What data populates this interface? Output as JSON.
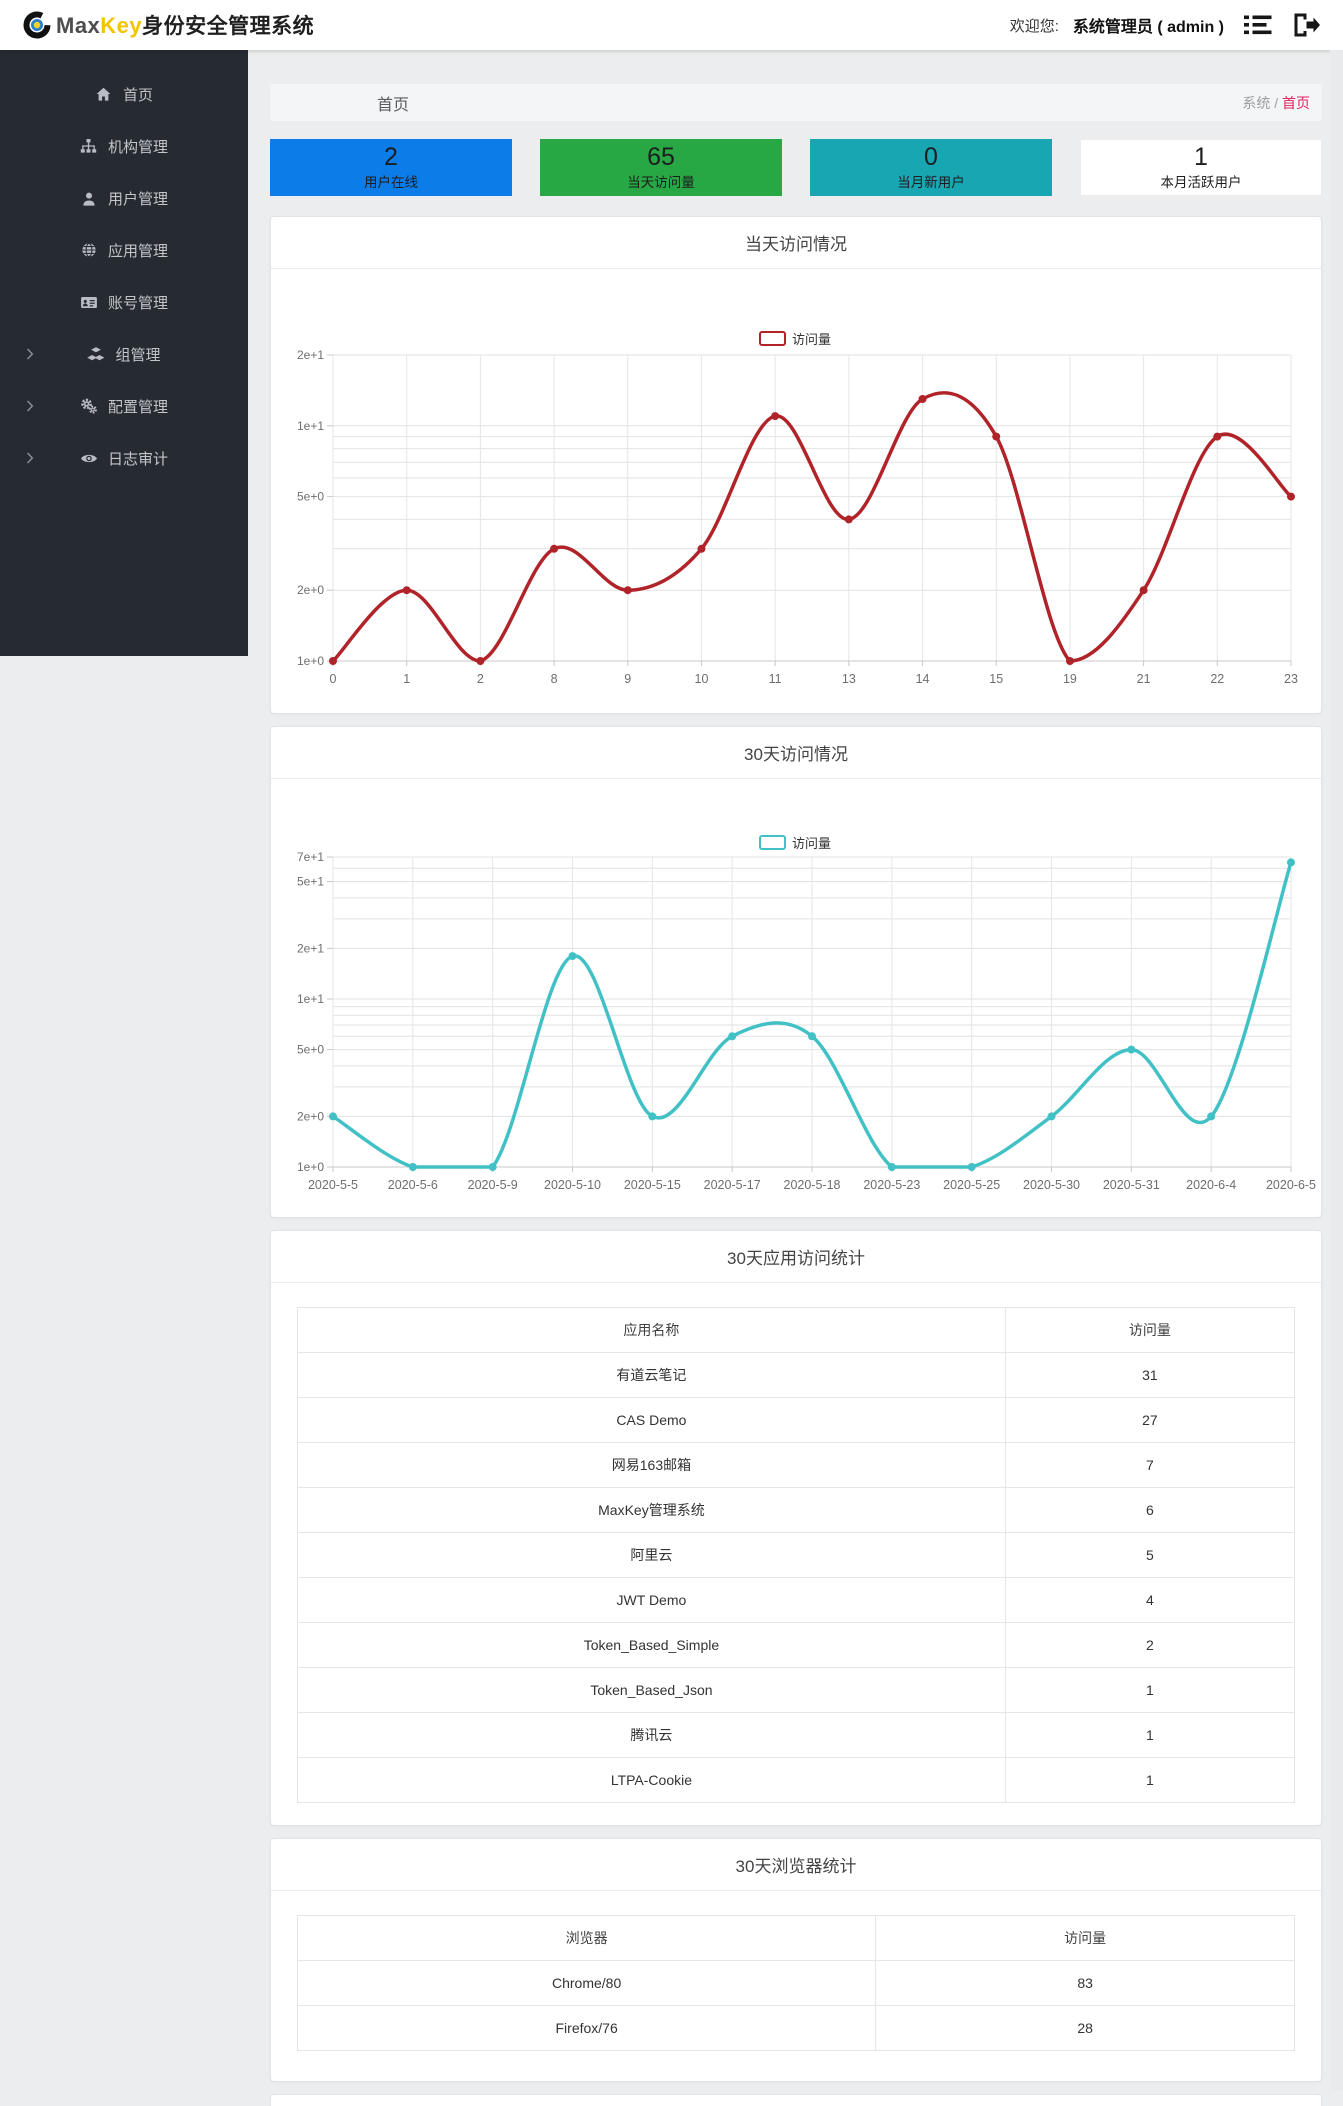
{
  "header": {
    "logo_max": "Max",
    "logo_key": "Key",
    "logo_suffix": "身份安全管理系统",
    "welcome_label": "欢迎您:",
    "username": "系统管理员 ( admin )"
  },
  "sidebar": {
    "items": [
      {
        "label": "首页",
        "icon": "home-icon",
        "expandable": false
      },
      {
        "label": "机构管理",
        "icon": "sitemap-icon",
        "expandable": false
      },
      {
        "label": "用户管理",
        "icon": "user-icon",
        "expandable": false
      },
      {
        "label": "应用管理",
        "icon": "globe-icon",
        "expandable": false
      },
      {
        "label": "账号管理",
        "icon": "idcard-icon",
        "expandable": false
      },
      {
        "label": "组管理",
        "icon": "cubes-icon",
        "expandable": true
      },
      {
        "label": "配置管理",
        "icon": "cogs-icon",
        "expandable": true
      },
      {
        "label": "日志审计",
        "icon": "eye-icon",
        "expandable": true
      }
    ]
  },
  "page": {
    "title": "首页",
    "breadcrumb_root": "系统",
    "breadcrumb_sep": "/",
    "breadcrumb_current": "首页"
  },
  "stats": [
    {
      "value": "2",
      "label": "用户在线",
      "color": "#0c7ce8"
    },
    {
      "value": "65",
      "label": "当天访问量",
      "color": "#28a745"
    },
    {
      "value": "0",
      "label": "当月新用户",
      "color": "#18a6b2"
    },
    {
      "value": "1",
      "label": "本月活跃用户",
      "color": "#ffffff"
    }
  ],
  "chart_data": [
    {
      "type": "line",
      "title": "当天访问情况",
      "legend": "访问量",
      "color": "#b02329",
      "smooth": true,
      "grid": true,
      "legend_position": "top",
      "y_scale": "log",
      "ylim": [
        1,
        20
      ],
      "x": [
        "0",
        "1",
        "2",
        "8",
        "9",
        "10",
        "11",
        "13",
        "14",
        "15",
        "19",
        "21",
        "22",
        "23"
      ],
      "values": [
        1,
        2,
        1,
        3,
        2,
        3,
        11,
        4,
        13,
        9,
        1,
        2,
        9,
        5
      ],
      "y_ticks": [
        {
          "v": 1,
          "label": "1e+0"
        },
        {
          "v": 2,
          "label": "2e+0"
        },
        {
          "v": 5,
          "label": "5e+0"
        },
        {
          "v": 10,
          "label": "1e+1"
        },
        {
          "v": 20,
          "label": "2e+1"
        }
      ],
      "y_grid": [
        1,
        2,
        3,
        4,
        5,
        6,
        7,
        8,
        9,
        10,
        20
      ]
    },
    {
      "type": "line",
      "title": "30天访问情况",
      "legend": "访问量",
      "color": "#41c1c5",
      "smooth": true,
      "grid": true,
      "legend_position": "top",
      "y_scale": "log",
      "ylim": [
        1,
        70
      ],
      "x": [
        "2020-5-5",
        "2020-5-6",
        "2020-5-9",
        "2020-5-10",
        "2020-5-15",
        "2020-5-17",
        "2020-5-18",
        "2020-5-23",
        "2020-5-25",
        "2020-5-30",
        "2020-5-31",
        "2020-6-4",
        "2020-6-5"
      ],
      "values": [
        2,
        1,
        1,
        18,
        2,
        6,
        6,
        1,
        1,
        2,
        5,
        2,
        65
      ],
      "y_ticks": [
        {
          "v": 1,
          "label": "1e+0"
        },
        {
          "v": 2,
          "label": "2e+0"
        },
        {
          "v": 5,
          "label": "5e+0"
        },
        {
          "v": 10,
          "label": "1e+1"
        },
        {
          "v": 20,
          "label": "2e+1"
        },
        {
          "v": 50,
          "label": "5e+1"
        },
        {
          "v": 70,
          "label": "7e+1"
        }
      ],
      "y_grid": [
        1,
        2,
        3,
        4,
        5,
        6,
        7,
        8,
        9,
        10,
        20,
        30,
        40,
        50,
        60,
        70
      ]
    }
  ],
  "tables": [
    {
      "title": "30天应用访问统计",
      "headers": [
        "应用名称",
        "访问量"
      ],
      "col1_width": "71%",
      "rows": [
        [
          "有道云笔记",
          "31"
        ],
        [
          "CAS Demo",
          "27"
        ],
        [
          "网易163邮箱",
          "7"
        ],
        [
          "MaxKey管理系统",
          "6"
        ],
        [
          "阿里云",
          "5"
        ],
        [
          "JWT Demo",
          "4"
        ],
        [
          "Token_Based_Simple",
          "2"
        ],
        [
          "Token_Based_Json",
          "1"
        ],
        [
          "腾讯云",
          "1"
        ],
        [
          "LTPA-Cookie",
          "1"
        ]
      ]
    },
    {
      "title": "30天浏览器统计",
      "headers": [
        "浏览器",
        "访问量"
      ],
      "col1_width": "58%",
      "rows": [
        [
          "Chrome/80",
          "83"
        ],
        [
          "Firefox/76",
          "28"
        ]
      ]
    }
  ]
}
